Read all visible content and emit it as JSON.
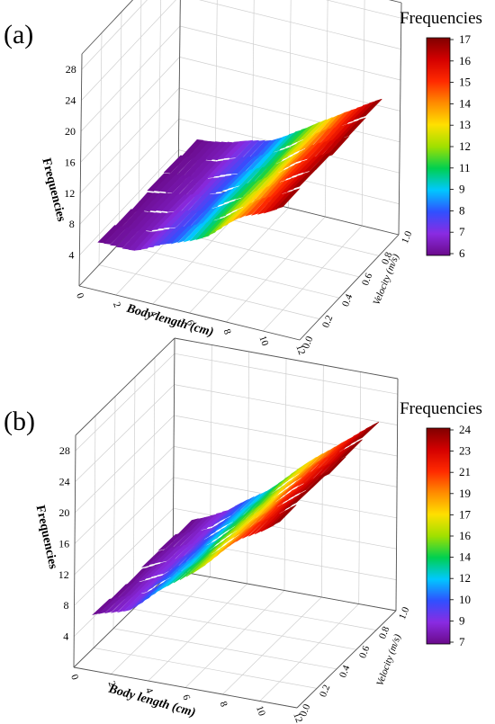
{
  "figure": {
    "panels": [
      {
        "panel_label": "(a)",
        "colorbar_title": "Frequencies",
        "colorbar_ticks": [
          "17",
          "16",
          "15",
          "14",
          "13",
          "12",
          "11",
          "9",
          "8",
          "7",
          "6"
        ],
        "colorbar_range": [
          6,
          17
        ]
      },
      {
        "panel_label": "(b)",
        "colorbar_title": "Frequencies",
        "colorbar_ticks": [
          "24",
          "23",
          "21",
          "19",
          "17",
          "16",
          "14",
          "12",
          "10",
          "9",
          "7"
        ],
        "colorbar_range": [
          7,
          24
        ]
      }
    ],
    "colormap": [
      "#6a0a8a",
      "#8a2be2",
      "#3050ff",
      "#00c8ff",
      "#00d050",
      "#a0e000",
      "#ffe000",
      "#ff8c00",
      "#ff2a00",
      "#d40000",
      "#800000"
    ]
  },
  "chart_data": [
    {
      "type": "surface3d",
      "panel": "(a)",
      "xlabel": "Body length (cm)",
      "ylabel": "Velocity (m/s)",
      "zlabel": "Frequencies",
      "x_ticks": [
        "0",
        "2",
        "4",
        "6",
        "8",
        "10",
        "12"
      ],
      "y_ticks": [
        "0.0",
        "0.2",
        "0.4",
        "0.6",
        "0.8",
        "1.0"
      ],
      "z_ticks": [
        "4",
        "8",
        "12",
        "16",
        "20",
        "24",
        "28"
      ],
      "xlim": [
        0,
        12
      ],
      "ylim": [
        0,
        1
      ],
      "zlim": [
        0,
        30
      ],
      "surface": {
        "x": [
          1,
          3,
          5,
          7,
          9,
          11
        ],
        "frequency_profile": [
          6.0,
          6.6,
          8.2,
          10.8,
          14.2,
          16.8
        ],
        "y_range": [
          0.0,
          1.0
        ]
      }
    },
    {
      "type": "surface3d",
      "panel": "(b)",
      "xlabel": "Body length (cm)",
      "ylabel": "Velocity (m/s)",
      "zlabel": "Frequencies",
      "x_ticks": [
        "0",
        "2",
        "4",
        "6",
        "8",
        "10",
        "12"
      ],
      "y_ticks": [
        "0.0",
        "0.2",
        "0.4",
        "0.6",
        "0.8",
        "1.0"
      ],
      "z_ticks": [
        "4",
        "8",
        "12",
        "16",
        "20",
        "24",
        "28"
      ],
      "xlim": [
        0,
        12
      ],
      "ylim": [
        0,
        1
      ],
      "zlim": [
        0,
        30
      ],
      "surface": {
        "x": [
          1,
          3,
          5,
          7,
          9,
          11
        ],
        "frequency_profile": [
          7.0,
          9.0,
          12.5,
          16.5,
          20.5,
          23.8
        ],
        "y_range": [
          0.0,
          1.0
        ]
      }
    }
  ]
}
